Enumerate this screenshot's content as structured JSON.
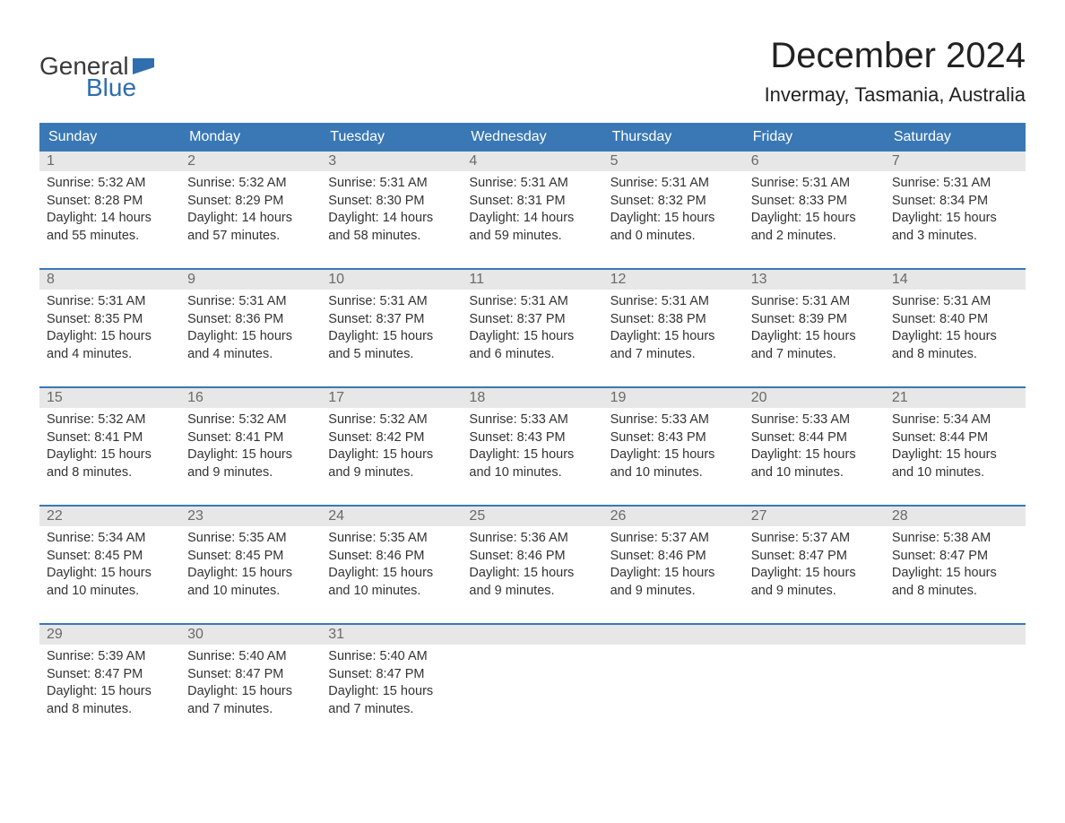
{
  "logo": {
    "word1": "General",
    "word2": "Blue",
    "word1_color": "#3a3a3a",
    "word2_color": "#2f6eaf",
    "flag_color": "#2f6eaf"
  },
  "title": "December 2024",
  "location": "Invermay, Tasmania, Australia",
  "colors": {
    "header_bg": "#3a78b5",
    "header_text": "#ffffff",
    "daynum_bg": "#e7e7e7",
    "daynum_text": "#6a6a6a",
    "body_text": "#333333",
    "row_border": "#3a78b5",
    "page_bg": "#ffffff"
  },
  "fonts": {
    "title_size_pt": 30,
    "location_size_pt": 16,
    "weekday_size_pt": 12,
    "daynum_size_pt": 12,
    "body_size_pt": 11
  },
  "weekdays": [
    "Sunday",
    "Monday",
    "Tuesday",
    "Wednesday",
    "Thursday",
    "Friday",
    "Saturday"
  ],
  "labels": {
    "sunrise_prefix": "Sunrise: ",
    "sunset_prefix": "Sunset: ",
    "daylight_prefix": "Daylight: "
  },
  "weeks": [
    [
      {
        "day": "1",
        "sunrise": "5:32 AM",
        "sunset": "8:28 PM",
        "daylight": "14 hours and 55 minutes."
      },
      {
        "day": "2",
        "sunrise": "5:32 AM",
        "sunset": "8:29 PM",
        "daylight": "14 hours and 57 minutes."
      },
      {
        "day": "3",
        "sunrise": "5:31 AM",
        "sunset": "8:30 PM",
        "daylight": "14 hours and 58 minutes."
      },
      {
        "day": "4",
        "sunrise": "5:31 AM",
        "sunset": "8:31 PM",
        "daylight": "14 hours and 59 minutes."
      },
      {
        "day": "5",
        "sunrise": "5:31 AM",
        "sunset": "8:32 PM",
        "daylight": "15 hours and 0 minutes."
      },
      {
        "day": "6",
        "sunrise": "5:31 AM",
        "sunset": "8:33 PM",
        "daylight": "15 hours and 2 minutes."
      },
      {
        "day": "7",
        "sunrise": "5:31 AM",
        "sunset": "8:34 PM",
        "daylight": "15 hours and 3 minutes."
      }
    ],
    [
      {
        "day": "8",
        "sunrise": "5:31 AM",
        "sunset": "8:35 PM",
        "daylight": "15 hours and 4 minutes."
      },
      {
        "day": "9",
        "sunrise": "5:31 AM",
        "sunset": "8:36 PM",
        "daylight": "15 hours and 4 minutes."
      },
      {
        "day": "10",
        "sunrise": "5:31 AM",
        "sunset": "8:37 PM",
        "daylight": "15 hours and 5 minutes."
      },
      {
        "day": "11",
        "sunrise": "5:31 AM",
        "sunset": "8:37 PM",
        "daylight": "15 hours and 6 minutes."
      },
      {
        "day": "12",
        "sunrise": "5:31 AM",
        "sunset": "8:38 PM",
        "daylight": "15 hours and 7 minutes."
      },
      {
        "day": "13",
        "sunrise": "5:31 AM",
        "sunset": "8:39 PM",
        "daylight": "15 hours and 7 minutes."
      },
      {
        "day": "14",
        "sunrise": "5:31 AM",
        "sunset": "8:40 PM",
        "daylight": "15 hours and 8 minutes."
      }
    ],
    [
      {
        "day": "15",
        "sunrise": "5:32 AM",
        "sunset": "8:41 PM",
        "daylight": "15 hours and 8 minutes."
      },
      {
        "day": "16",
        "sunrise": "5:32 AM",
        "sunset": "8:41 PM",
        "daylight": "15 hours and 9 minutes."
      },
      {
        "day": "17",
        "sunrise": "5:32 AM",
        "sunset": "8:42 PM",
        "daylight": "15 hours and 9 minutes."
      },
      {
        "day": "18",
        "sunrise": "5:33 AM",
        "sunset": "8:43 PM",
        "daylight": "15 hours and 10 minutes."
      },
      {
        "day": "19",
        "sunrise": "5:33 AM",
        "sunset": "8:43 PM",
        "daylight": "15 hours and 10 minutes."
      },
      {
        "day": "20",
        "sunrise": "5:33 AM",
        "sunset": "8:44 PM",
        "daylight": "15 hours and 10 minutes."
      },
      {
        "day": "21",
        "sunrise": "5:34 AM",
        "sunset": "8:44 PM",
        "daylight": "15 hours and 10 minutes."
      }
    ],
    [
      {
        "day": "22",
        "sunrise": "5:34 AM",
        "sunset": "8:45 PM",
        "daylight": "15 hours and 10 minutes."
      },
      {
        "day": "23",
        "sunrise": "5:35 AM",
        "sunset": "8:45 PM",
        "daylight": "15 hours and 10 minutes."
      },
      {
        "day": "24",
        "sunrise": "5:35 AM",
        "sunset": "8:46 PM",
        "daylight": "15 hours and 10 minutes."
      },
      {
        "day": "25",
        "sunrise": "5:36 AM",
        "sunset": "8:46 PM",
        "daylight": "15 hours and 9 minutes."
      },
      {
        "day": "26",
        "sunrise": "5:37 AM",
        "sunset": "8:46 PM",
        "daylight": "15 hours and 9 minutes."
      },
      {
        "day": "27",
        "sunrise": "5:37 AM",
        "sunset": "8:47 PM",
        "daylight": "15 hours and 9 minutes."
      },
      {
        "day": "28",
        "sunrise": "5:38 AM",
        "sunset": "8:47 PM",
        "daylight": "15 hours and 8 minutes."
      }
    ],
    [
      {
        "day": "29",
        "sunrise": "5:39 AM",
        "sunset": "8:47 PM",
        "daylight": "15 hours and 8 minutes."
      },
      {
        "day": "30",
        "sunrise": "5:40 AM",
        "sunset": "8:47 PM",
        "daylight": "15 hours and 7 minutes."
      },
      {
        "day": "31",
        "sunrise": "5:40 AM",
        "sunset": "8:47 PM",
        "daylight": "15 hours and 7 minutes."
      },
      null,
      null,
      null,
      null
    ]
  ]
}
